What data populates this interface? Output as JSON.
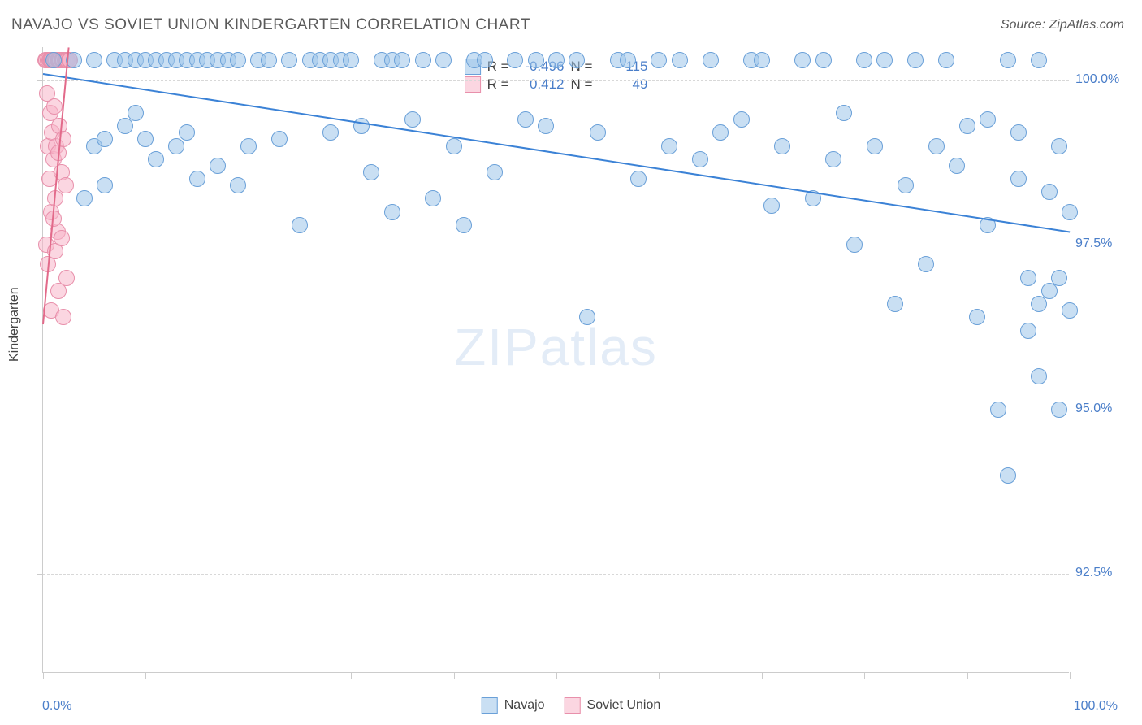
{
  "title": "NAVAJO VS SOVIET UNION KINDERGARTEN CORRELATION CHART",
  "source": "Source: ZipAtlas.com",
  "ylabel": "Kindergarten",
  "watermark_zip": "ZIP",
  "watermark_atlas": "atlas",
  "colors": {
    "navajo_fill": "rgba(157,196,234,0.55)",
    "navajo_stroke": "#6aa0d8",
    "soviet_fill": "rgba(247,180,200,0.55)",
    "soviet_stroke": "#e890ab",
    "trend_navajo": "#3b82d6",
    "trend_soviet": "#e26a8a",
    "axis_text": "#4a7ec9",
    "grid": "#d8d8d8"
  },
  "chart": {
    "type": "scatter",
    "xlim": [
      0,
      100
    ],
    "ylim": [
      91,
      100.5
    ],
    "y_ticks": [
      92.5,
      95.0,
      97.5,
      100.0
    ],
    "y_tick_labels": [
      "92.5%",
      "95.0%",
      "97.5%",
      "100.0%"
    ],
    "x_tick_positions": [
      0,
      10,
      20,
      30,
      40,
      50,
      60,
      70,
      80,
      90,
      100
    ],
    "x_min_label": "0.0%",
    "x_max_label": "100.0%",
    "point_radius": 10
  },
  "stats": {
    "navajo": {
      "R": "-0.496",
      "N": "115"
    },
    "soviet": {
      "R": "0.412",
      "N": "49"
    }
  },
  "legend": {
    "navajo": "Navajo",
    "soviet": "Soviet Union"
  },
  "trend_lines": {
    "navajo": {
      "x1": 0,
      "y1": 100.1,
      "x2": 100,
      "y2": 97.7
    },
    "soviet": {
      "x1": 0,
      "y1": 96.3,
      "x2": 2.5,
      "y2": 100.5
    }
  },
  "series": {
    "navajo": [
      [
        1,
        100.3
      ],
      [
        3,
        100.3
      ],
      [
        4,
        98.2
      ],
      [
        5,
        99.0
      ],
      [
        5,
        100.3
      ],
      [
        6,
        99.1
      ],
      [
        6,
        98.4
      ],
      [
        7,
        100.3
      ],
      [
        8,
        99.3
      ],
      [
        8,
        100.3
      ],
      [
        9,
        100.3
      ],
      [
        9,
        99.5
      ],
      [
        10,
        100.3
      ],
      [
        10,
        99.1
      ],
      [
        11,
        100.3
      ],
      [
        11,
        98.8
      ],
      [
        12,
        100.3
      ],
      [
        13,
        100.3
      ],
      [
        13,
        99.0
      ],
      [
        14,
        100.3
      ],
      [
        14,
        99.2
      ],
      [
        15,
        100.3
      ],
      [
        15,
        98.5
      ],
      [
        16,
        100.3
      ],
      [
        17,
        100.3
      ],
      [
        17,
        98.7
      ],
      [
        18,
        100.3
      ],
      [
        19,
        100.3
      ],
      [
        19,
        98.4
      ],
      [
        20,
        99.0
      ],
      [
        21,
        100.3
      ],
      [
        22,
        100.3
      ],
      [
        23,
        99.1
      ],
      [
        24,
        100.3
      ],
      [
        25,
        97.8
      ],
      [
        26,
        100.3
      ],
      [
        27,
        100.3
      ],
      [
        28,
        99.2
      ],
      [
        28,
        100.3
      ],
      [
        29,
        100.3
      ],
      [
        30,
        100.3
      ],
      [
        31,
        99.3
      ],
      [
        32,
        98.6
      ],
      [
        33,
        100.3
      ],
      [
        34,
        100.3
      ],
      [
        34,
        98.0
      ],
      [
        35,
        100.3
      ],
      [
        36,
        99.4
      ],
      [
        37,
        100.3
      ],
      [
        38,
        98.2
      ],
      [
        39,
        100.3
      ],
      [
        40,
        99.0
      ],
      [
        41,
        97.8
      ],
      [
        42,
        100.3
      ],
      [
        43,
        100.3
      ],
      [
        44,
        98.6
      ],
      [
        46,
        100.3
      ],
      [
        47,
        99.4
      ],
      [
        48,
        100.3
      ],
      [
        49,
        99.3
      ],
      [
        50,
        100.3
      ],
      [
        52,
        100.3
      ],
      [
        53,
        96.4
      ],
      [
        54,
        99.2
      ],
      [
        56,
        100.3
      ],
      [
        57,
        100.3
      ],
      [
        58,
        98.5
      ],
      [
        60,
        100.3
      ],
      [
        61,
        99.0
      ],
      [
        62,
        100.3
      ],
      [
        64,
        98.8
      ],
      [
        65,
        100.3
      ],
      [
        66,
        99.2
      ],
      [
        68,
        99.4
      ],
      [
        69,
        100.3
      ],
      [
        70,
        100.3
      ],
      [
        71,
        98.1
      ],
      [
        72,
        99.0
      ],
      [
        74,
        100.3
      ],
      [
        75,
        98.2
      ],
      [
        76,
        100.3
      ],
      [
        77,
        98.8
      ],
      [
        78,
        99.5
      ],
      [
        79,
        97.5
      ],
      [
        80,
        100.3
      ],
      [
        81,
        99.0
      ],
      [
        82,
        100.3
      ],
      [
        83,
        96.6
      ],
      [
        84,
        98.4
      ],
      [
        85,
        100.3
      ],
      [
        86,
        97.2
      ],
      [
        87,
        99.0
      ],
      [
        88,
        100.3
      ],
      [
        89,
        98.7
      ],
      [
        90,
        99.3
      ],
      [
        91,
        96.4
      ],
      [
        92,
        99.4
      ],
      [
        92,
        97.8
      ],
      [
        93,
        95.0
      ],
      [
        94,
        100.3
      ],
      [
        94,
        94.0
      ],
      [
        95,
        98.5
      ],
      [
        95,
        99.2
      ],
      [
        96,
        96.2
      ],
      [
        96,
        97.0
      ],
      [
        97,
        96.6
      ],
      [
        97,
        100.3
      ],
      [
        97,
        95.5
      ],
      [
        98,
        98.3
      ],
      [
        98,
        96.8
      ],
      [
        99,
        95.0
      ],
      [
        99,
        97.0
      ],
      [
        99,
        99.0
      ],
      [
        100,
        96.5
      ],
      [
        100,
        98.0
      ]
    ],
    "soviet": [
      [
        0.2,
        100.3
      ],
      [
        0.3,
        100.3
      ],
      [
        0.4,
        99.8
      ],
      [
        0.5,
        100.3
      ],
      [
        0.5,
        99.0
      ],
      [
        0.6,
        100.3
      ],
      [
        0.6,
        98.5
      ],
      [
        0.7,
        100.3
      ],
      [
        0.7,
        99.5
      ],
      [
        0.8,
        100.3
      ],
      [
        0.8,
        98.0
      ],
      [
        0.9,
        100.3
      ],
      [
        0.9,
        99.2
      ],
      [
        1.0,
        100.3
      ],
      [
        1.0,
        98.8
      ],
      [
        1.1,
        100.3
      ],
      [
        1.1,
        99.6
      ],
      [
        1.2,
        100.3
      ],
      [
        1.2,
        98.2
      ],
      [
        1.3,
        100.3
      ],
      [
        1.3,
        99.0
      ],
      [
        1.4,
        100.3
      ],
      [
        1.4,
        97.7
      ],
      [
        1.5,
        100.3
      ],
      [
        1.5,
        98.9
      ],
      [
        1.6,
        100.3
      ],
      [
        1.6,
        99.3
      ],
      [
        1.7,
        100.3
      ],
      [
        1.8,
        100.3
      ],
      [
        1.8,
        98.6
      ],
      [
        1.9,
        100.3
      ],
      [
        2.0,
        100.3
      ],
      [
        2.0,
        99.1
      ],
      [
        2.1,
        100.3
      ],
      [
        2.2,
        100.3
      ],
      [
        2.2,
        98.4
      ],
      [
        2.3,
        100.3
      ],
      [
        2.4,
        100.3
      ],
      [
        2.5,
        100.3
      ],
      [
        2.6,
        100.3
      ],
      [
        0.3,
        97.5
      ],
      [
        0.5,
        97.2
      ],
      [
        0.8,
        96.5
      ],
      [
        1.0,
        97.9
      ],
      [
        1.2,
        97.4
      ],
      [
        1.5,
        96.8
      ],
      [
        1.8,
        97.6
      ],
      [
        2.0,
        96.4
      ],
      [
        2.3,
        97.0
      ]
    ]
  },
  "stat_labels": {
    "R": "R =",
    "N": "N ="
  }
}
